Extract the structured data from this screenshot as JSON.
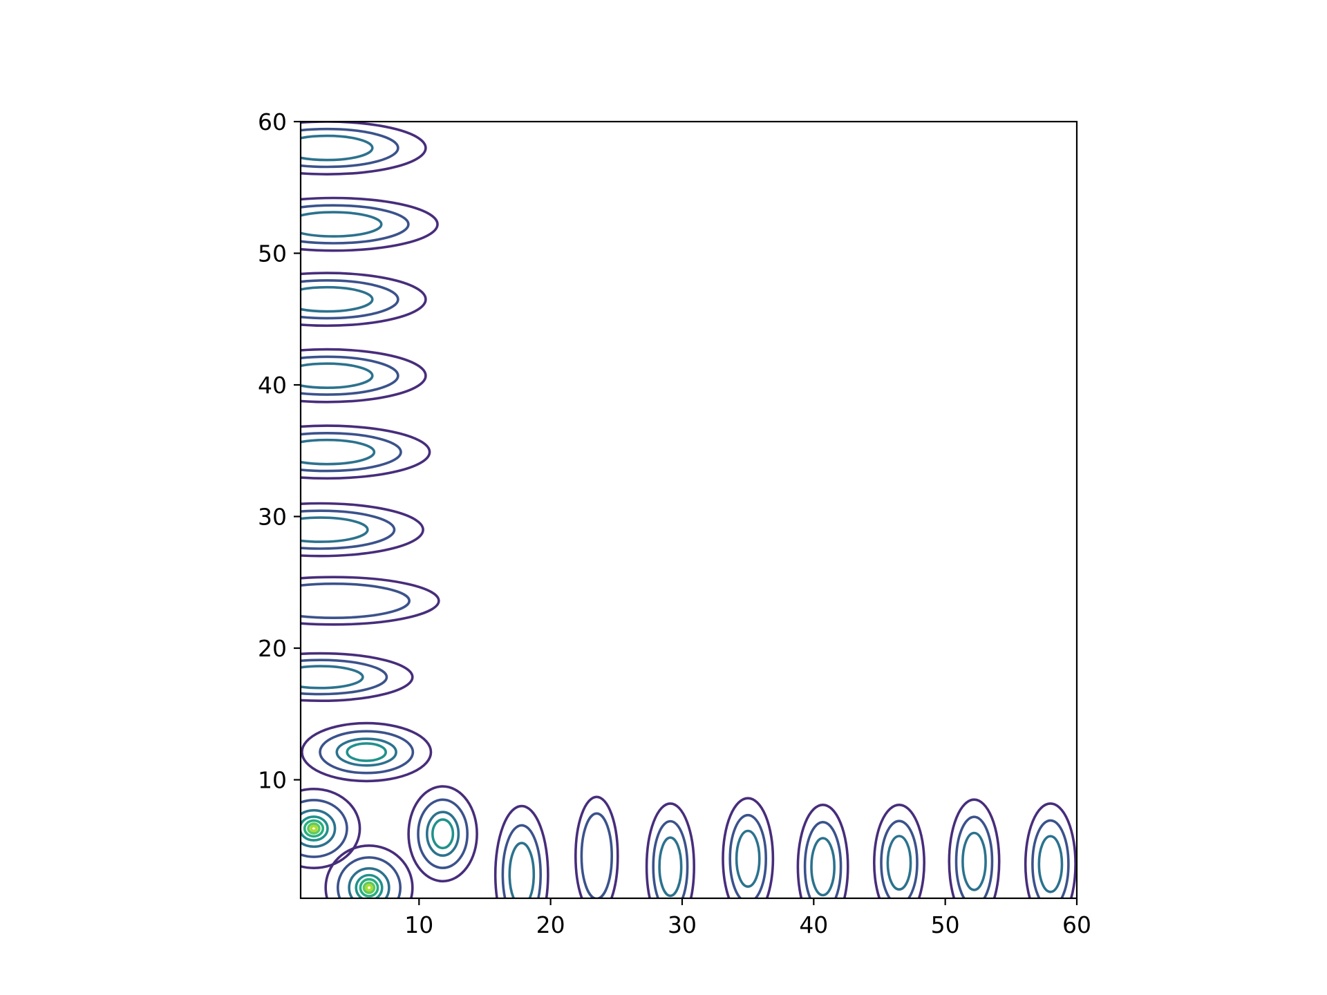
{
  "chart_data": {
    "type": "contour",
    "title": "",
    "xlabel": "",
    "ylabel": "",
    "xlim": [
      1,
      60
    ],
    "ylim": [
      1,
      60
    ],
    "grid": false,
    "legend": "none",
    "x_ticks": [
      10,
      20,
      30,
      40,
      50,
      60
    ],
    "y_ticks": [
      10,
      20,
      30,
      40,
      50,
      60
    ],
    "colormap": "viridis",
    "level_colors": [
      "#472d7b",
      "#3b528b",
      "#2c728e",
      "#21918c",
      "#28ae80",
      "#5ec962",
      "#addc30"
    ],
    "peaks": [
      {
        "x": 3.0,
        "y": 58.0,
        "rx": 7.5,
        "ry": 2.0,
        "levels": 3
      },
      {
        "x": 3.5,
        "y": 52.2,
        "rx": 7.9,
        "ry": 2.0,
        "levels": 3
      },
      {
        "x": 3.0,
        "y": 46.5,
        "rx": 7.5,
        "ry": 2.0,
        "levels": 3
      },
      {
        "x": 3.0,
        "y": 40.7,
        "rx": 7.5,
        "ry": 2.0,
        "levels": 3
      },
      {
        "x": 3.0,
        "y": 34.9,
        "rx": 7.8,
        "ry": 2.0,
        "levels": 3
      },
      {
        "x": 2.5,
        "y": 29.0,
        "rx": 7.8,
        "ry": 2.0,
        "levels": 3
      },
      {
        "x": 3.5,
        "y": 23.6,
        "rx": 8.0,
        "ry": 1.8,
        "levels": 2
      },
      {
        "x": 2.5,
        "y": 17.8,
        "rx": 7.0,
        "ry": 1.8,
        "levels": 3
      },
      {
        "x": 6.0,
        "y": 12.1,
        "rx": 4.9,
        "ry": 2.2,
        "levels": 4
      },
      {
        "x": 2.0,
        "y": 6.3,
        "rx": 3.5,
        "ry": 3.0,
        "levels": 7
      },
      {
        "x": 6.2,
        "y": 1.8,
        "rx": 3.3,
        "ry": 3.2,
        "levels": 7
      },
      {
        "x": 11.8,
        "y": 5.9,
        "rx": 2.6,
        "ry": 3.6,
        "levels": 4
      },
      {
        "x": 17.8,
        "y": 2.8,
        "rx": 2.0,
        "ry": 5.2,
        "levels": 3
      },
      {
        "x": 23.5,
        "y": 4.2,
        "rx": 1.6,
        "ry": 4.5,
        "levels": 2
      },
      {
        "x": 29.1,
        "y": 3.4,
        "rx": 1.8,
        "ry": 4.8,
        "levels": 3
      },
      {
        "x": 35.0,
        "y": 4.0,
        "rx": 1.9,
        "ry": 4.6,
        "levels": 3
      },
      {
        "x": 40.7,
        "y": 3.4,
        "rx": 1.9,
        "ry": 4.7,
        "levels": 3
      },
      {
        "x": 46.5,
        "y": 3.7,
        "rx": 1.9,
        "ry": 4.4,
        "levels": 3
      },
      {
        "x": 52.2,
        "y": 3.8,
        "rx": 1.9,
        "ry": 4.7,
        "levels": 3
      },
      {
        "x": 58.0,
        "y": 3.6,
        "rx": 1.9,
        "ry": 4.6,
        "levels": 3
      }
    ]
  }
}
